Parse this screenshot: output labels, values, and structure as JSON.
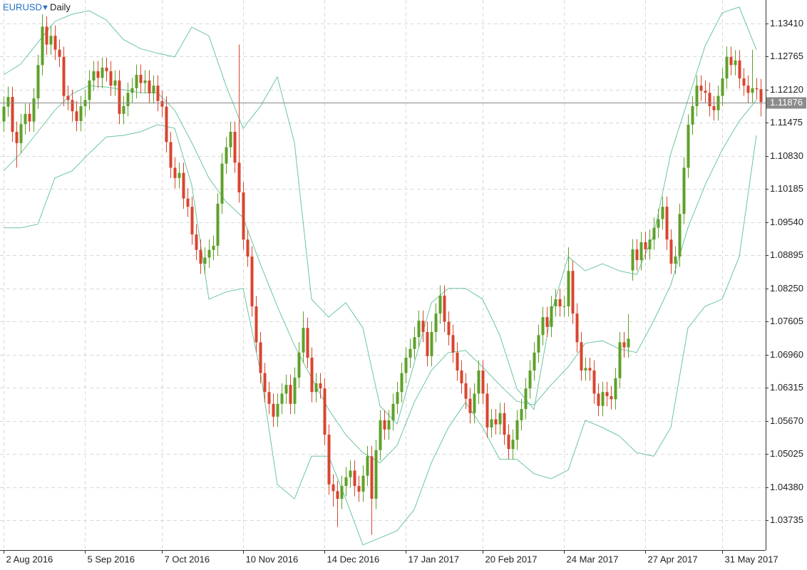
{
  "chart_data": {
    "type": "candlestick",
    "symbol": "EURUSD",
    "timeframe": "Daily",
    "up_color": "#5da12a",
    "down_color": "#d8452f",
    "band_color": "#6cc5a0",
    "grid": true,
    "xlim": [
      -0.83,
      178.17
    ],
    "ylim": [
      1.03152,
      1.13868
    ],
    "xticks": [
      {
        "value": 0,
        "label": "2 Aug 2016"
      },
      {
        "value": 19,
        "label": "5 Sep 2016"
      },
      {
        "value": 37,
        "label": "7 Oct 2016"
      },
      {
        "value": 56,
        "label": "10 Nov 2016"
      },
      {
        "value": 75,
        "label": "14 Dec 2016"
      },
      {
        "value": 94,
        "label": "17 Jan 2017"
      },
      {
        "value": 112,
        "label": "20 Feb 2017"
      },
      {
        "value": 131,
        "label": "24 Mar 2017"
      },
      {
        "value": 150,
        "label": "27 Apr 2017"
      },
      {
        "value": 168,
        "label": "31 May 2017"
      }
    ],
    "yticks": [
      {
        "value": 1.1341,
        "label": "1.13410"
      },
      1.12765,
      {
        "value": 1.1212,
        "label": "1.12120"
      },
      1.11475,
      {
        "value": 1.1083,
        "label": "1.10830"
      },
      1.10185,
      {
        "value": 1.0954,
        "label": "1.09540"
      },
      1.08895,
      {
        "value": 1.0825,
        "label": "1.08250"
      },
      1.07605,
      {
        "value": 1.0696,
        "label": "1.06960"
      },
      1.06315,
      {
        "value": 1.0567,
        "label": "1.05670"
      },
      1.05025,
      {
        "value": 1.0438,
        "label": "1.04380"
      },
      1.03735
    ],
    "current_price": 1.11876,
    "open": [
      1.115,
      1.1179,
      1.1198,
      1.113,
      1.1108,
      1.1145,
      1.1165,
      1.115,
      1.1195,
      1.126,
      1.1335,
      1.13,
      1.1317,
      1.129,
      1.1276,
      1.12,
      1.1192,
      1.117,
      1.1151,
      1.118,
      1.1192,
      1.123,
      1.1248,
      1.1235,
      1.1255,
      1.1248,
      1.122,
      1.123,
      1.1165,
      1.118,
      1.1206,
      1.1215,
      1.1241,
      1.1225,
      1.123,
      1.1205,
      1.122,
      1.119,
      1.1179,
      1.111,
      1.106,
      1.104,
      1.105,
      1.1,
      1.0984,
      1.093,
      1.09,
      1.0873,
      1.0885,
      1.09,
      1.0908,
      1.099,
      1.1068,
      1.11,
      1.113,
      1.107,
      1.1012,
      1.092,
      1.0887,
      1.079,
      1.072,
      1.066,
      1.0623,
      1.06,
      1.0575,
      1.06,
      1.062,
      1.0637,
      1.06,
      1.0651,
      1.07,
      1.0748,
      1.069,
      1.0623,
      1.064,
      1.063,
      1.054,
      1.0443,
      1.043,
      1.0415,
      1.044,
      1.0457,
      1.047,
      1.044,
      1.0429,
      1.046,
      1.0498,
      1.0415,
      1.051,
      1.0568,
      1.055,
      1.0568,
      1.06,
      1.0623,
      1.066,
      1.069,
      1.0707,
      1.073,
      1.0762,
      1.074,
      1.0693,
      1.074,
      1.0776,
      1.0811,
      1.076,
      1.0734,
      1.07,
      1.0665,
      1.064,
      1.061,
      1.0582,
      1.062,
      1.0665,
      1.062,
      1.0554,
      1.057,
      1.056,
      1.0582,
      1.054,
      1.0512,
      1.053,
      1.0568,
      1.059,
      1.063,
      1.0665,
      1.07,
      1.0734,
      1.0769,
      1.075,
      1.079,
      1.0804,
      1.079,
      1.079,
      1.0859,
      1.0776,
      1.072,
      1.0665,
      1.067,
      1.0665,
      1.062,
      1.0596,
      1.0623,
      1.0615,
      1.0609,
      1.065,
      1.072,
      1.071,
      1.086,
      1.0901,
      1.088,
      1.0915,
      1.0901,
      1.092,
      1.0943,
      1.096,
      1.0984,
      1.092,
      1.0873,
      1.0887,
      1.097,
      1.106,
      1.1144,
      1.118,
      1.122,
      1.121,
      1.1206,
      1.118,
      1.1172,
      1.12,
      1.1234,
      1.1276,
      1.126,
      1.1269,
      1.1234,
      1.122,
      1.1206,
      1.1215,
      1.1213
    ],
    "high": [
      1.1199,
      1.1218,
      1.1218,
      1.115,
      1.1165,
      1.1185,
      1.1185,
      1.1215,
      1.128,
      1.1359,
      1.1355,
      1.1337,
      1.1337,
      1.131,
      1.1296,
      1.122,
      1.1212,
      1.119,
      1.12,
      1.1212,
      1.125,
      1.1268,
      1.1268,
      1.1275,
      1.1275,
      1.1268,
      1.125,
      1.125,
      1.12,
      1.1226,
      1.1235,
      1.1261,
      1.1261,
      1.125,
      1.125,
      1.124,
      1.124,
      1.121,
      1.1199,
      1.113,
      1.108,
      1.107,
      1.107,
      1.102,
      1.1004,
      1.095,
      1.092,
      1.0905,
      1.092,
      1.0928,
      1.101,
      1.1088,
      1.112,
      1.115,
      1.115,
      1.13,
      1.1032,
      1.094,
      1.0907,
      1.081,
      1.074,
      1.068,
      1.0643,
      1.062,
      1.062,
      1.064,
      1.0657,
      1.0657,
      1.0671,
      1.072,
      1.078,
      1.0768,
      1.071,
      1.066,
      1.066,
      1.065,
      1.056,
      1.0463,
      1.045,
      1.046,
      1.0477,
      1.049,
      1.049,
      1.046,
      1.048,
      1.0518,
      1.0518,
      1.053,
      1.0588,
      1.0588,
      1.0588,
      1.062,
      1.0643,
      1.068,
      1.071,
      1.0727,
      1.075,
      1.0782,
      1.0782,
      1.076,
      1.076,
      1.0796,
      1.0831,
      1.0831,
      1.078,
      1.0754,
      1.072,
      1.0685,
      1.066,
      1.063,
      1.064,
      1.0685,
      1.0685,
      1.064,
      1.059,
      1.059,
      1.0602,
      1.0602,
      1.056,
      1.055,
      1.0588,
      1.061,
      1.065,
      1.0685,
      1.072,
      1.0754,
      1.0789,
      1.0789,
      1.081,
      1.0824,
      1.0824,
      1.081,
      1.0905,
      1.0879,
      1.0796,
      1.074,
      1.069,
      1.069,
      1.0685,
      1.064,
      1.0643,
      1.0643,
      1.0635,
      1.067,
      1.074,
      1.074,
      1.0775,
      1.0921,
      1.0921,
      1.0935,
      1.0935,
      1.094,
      1.0963,
      1.098,
      1.1004,
      1.1004,
      1.094,
      1.0907,
      1.099,
      1.108,
      1.1164,
      1.12,
      1.124,
      1.124,
      1.123,
      1.1226,
      1.12,
      1.122,
      1.1254,
      1.1296,
      1.1296,
      1.1289,
      1.1289,
      1.1254,
      1.124,
      1.129,
      1.1235,
      1.1233
    ],
    "low": [
      1.113,
      1.1159,
      1.111,
      1.106,
      1.1088,
      1.1125,
      1.113,
      1.113,
      1.1175,
      1.124,
      1.128,
      1.128,
      1.127,
      1.1256,
      1.118,
      1.1172,
      1.115,
      1.1131,
      1.1131,
      1.116,
      1.1172,
      1.121,
      1.1215,
      1.1215,
      1.1228,
      1.12,
      1.12,
      1.1145,
      1.1145,
      1.116,
      1.1186,
      1.1195,
      1.1205,
      1.1205,
      1.1185,
      1.1185,
      1.117,
      1.1159,
      1.109,
      1.104,
      1.102,
      1.102,
      1.098,
      1.0964,
      1.091,
      1.088,
      1.0853,
      1.0853,
      1.0865,
      1.088,
      1.0888,
      1.097,
      1.1048,
      1.108,
      1.105,
      1.0992,
      1.09,
      1.0867,
      1.077,
      1.07,
      1.064,
      1.0603,
      1.058,
      1.0555,
      1.0555,
      1.058,
      1.06,
      1.058,
      1.058,
      1.0631,
      1.068,
      1.067,
      1.0603,
      1.0603,
      1.061,
      1.052,
      1.0423,
      1.04,
      1.036,
      1.0395,
      1.042,
      1.0437,
      1.042,
      1.0409,
      1.0409,
      1.044,
      1.0345,
      1.0395,
      1.049,
      1.053,
      1.053,
      1.0548,
      1.058,
      1.0603,
      1.064,
      1.067,
      1.0687,
      1.071,
      1.072,
      1.0673,
      1.0673,
      1.072,
      1.0756,
      1.074,
      1.0714,
      1.068,
      1.0645,
      1.062,
      1.059,
      1.0562,
      1.0562,
      1.06,
      1.06,
      1.0534,
      1.0534,
      1.054,
      1.054,
      1.052,
      1.0492,
      1.0492,
      1.051,
      1.0548,
      1.057,
      1.061,
      1.0645,
      1.068,
      1.0714,
      1.073,
      1.073,
      1.077,
      1.077,
      1.077,
      1.077,
      1.0756,
      1.07,
      1.0645,
      1.0645,
      1.0645,
      1.06,
      1.0576,
      1.0576,
      1.0595,
      1.0589,
      1.0589,
      1.063,
      1.069,
      1.069,
      1.084,
      1.086,
      1.086,
      1.0881,
      1.0881,
      1.09,
      1.0923,
      1.094,
      1.09,
      1.0853,
      1.0853,
      1.0867,
      1.095,
      1.104,
      1.1124,
      1.116,
      1.119,
      1.1186,
      1.116,
      1.1152,
      1.1152,
      1.118,
      1.1214,
      1.124,
      1.124,
      1.1214,
      1.12,
      1.1186,
      1.1186,
      1.1193,
      1.116
    ],
    "close": [
      1.1179,
      1.1198,
      1.113,
      1.1108,
      1.1145,
      1.1165,
      1.115,
      1.1195,
      1.126,
      1.1335,
      1.13,
      1.1317,
      1.129,
      1.1276,
      1.12,
      1.1192,
      1.117,
      1.1151,
      1.118,
      1.1192,
      1.123,
      1.1248,
      1.1235,
      1.1255,
      1.1248,
      1.122,
      1.123,
      1.1165,
      1.118,
      1.1206,
      1.1215,
      1.1241,
      1.1225,
      1.123,
      1.1205,
      1.122,
      1.119,
      1.1179,
      1.111,
      1.106,
      1.104,
      1.105,
      1.1,
      1.0984,
      1.093,
      1.09,
      1.0873,
      1.0885,
      1.09,
      1.0908,
      1.099,
      1.1068,
      1.11,
      1.113,
      1.107,
      1.1012,
      1.092,
      1.0887,
      1.079,
      1.072,
      1.066,
      1.0623,
      1.06,
      1.0575,
      1.06,
      1.062,
      1.0637,
      1.06,
      1.0651,
      1.07,
      1.0748,
      1.069,
      1.0623,
      1.064,
      1.063,
      1.054,
      1.0443,
      1.043,
      1.0415,
      1.044,
      1.0457,
      1.047,
      1.044,
      1.0429,
      1.046,
      1.0498,
      1.0415,
      1.051,
      1.0568,
      1.055,
      1.0568,
      1.06,
      1.0623,
      1.066,
      1.069,
      1.0707,
      1.073,
      1.0762,
      1.074,
      1.0693,
      1.074,
      1.0776,
      1.0811,
      1.076,
      1.0734,
      1.07,
      1.0665,
      1.064,
      1.061,
      1.0582,
      1.062,
      1.0665,
      1.062,
      1.0554,
      1.057,
      1.056,
      1.0582,
      1.054,
      1.0512,
      1.053,
      1.0568,
      1.059,
      1.063,
      1.0665,
      1.07,
      1.0734,
      1.0769,
      1.075,
      1.079,
      1.0804,
      1.079,
      1.079,
      1.0859,
      1.0776,
      1.072,
      1.0665,
      1.067,
      1.0665,
      1.062,
      1.0596,
      1.0623,
      1.0615,
      1.0609,
      1.065,
      1.072,
      1.071,
      1.0727,
      1.0901,
      1.088,
      1.0915,
      1.0901,
      1.092,
      1.0943,
      1.096,
      1.0984,
      1.092,
      1.0873,
      1.0887,
      1.097,
      1.106,
      1.1144,
      1.118,
      1.122,
      1.121,
      1.1206,
      1.118,
      1.1172,
      1.12,
      1.1234,
      1.1276,
      1.126,
      1.1269,
      1.1234,
      1.122,
      1.1206,
      1.1215,
      1.1213,
      1.1188
    ],
    "band_x": [
      0,
      4,
      8,
      12,
      16,
      20,
      24,
      28,
      32,
      36,
      40,
      44,
      48,
      52,
      56,
      60,
      64,
      68,
      72,
      76,
      80,
      84,
      88,
      92,
      96,
      100,
      104,
      108,
      112,
      116,
      120,
      124,
      128,
      132,
      136,
      140,
      144,
      148,
      152,
      156,
      160,
      164,
      168,
      172,
      176
    ],
    "bands": [
      {
        "values": [
          1.1241,
          1.1262,
          1.1304,
          1.1345,
          1.1359,
          1.1366,
          1.1348,
          1.131,
          1.1292,
          1.1283,
          1.1276,
          1.1334,
          1.1317,
          1.122,
          1.1137,
          1.1179,
          1.1237,
          1.1109,
          1.0804,
          1.0769,
          1.0797,
          1.0748,
          1.0596,
          1.0561,
          1.0679,
          1.0797,
          1.0825,
          1.0825,
          1.0804,
          1.0734,
          1.063,
          1.0589,
          1.0776,
          1.0887,
          1.0859,
          1.0873,
          1.0859,
          1.0852,
          1.0929,
          1.1088,
          1.1192,
          1.1297,
          1.1362,
          1.1373,
          1.129
        ]
      },
      {
        "values": [
          1.1054,
          1.1088,
          1.113,
          1.1172,
          1.1204,
          1.122,
          1.1217,
          1.1212,
          1.1206,
          1.1206,
          1.1172,
          1.1109,
          1.104,
          1.0994,
          1.0963,
          1.0873,
          1.079,
          1.0714,
          1.0651,
          1.0589,
          1.054,
          1.0505,
          1.0485,
          1.0519,
          1.0603,
          1.0665,
          1.07,
          1.0704,
          1.0672,
          1.0637,
          1.0605,
          1.0598,
          1.0637,
          1.0672,
          1.0718,
          1.0723,
          1.0707,
          1.07,
          1.0762,
          1.0832,
          1.0943,
          1.1026,
          1.1095,
          1.1151,
          1.1192
        ]
      },
      {
        "values": [
          1.0943,
          1.0943,
          1.095,
          1.104,
          1.1054,
          1.1088,
          1.112,
          1.1123,
          1.113,
          1.1144,
          1.1137,
          1.1026,
          1.0804,
          1.0818,
          1.0825,
          1.0665,
          1.0443,
          1.0415,
          1.0498,
          1.0498,
          1.0415,
          1.0325,
          1.0339,
          1.0353,
          1.0394,
          1.0485,
          1.0554,
          1.0603,
          1.0554,
          1.0492,
          1.0492,
          1.0464,
          1.0454,
          1.0471,
          1.0568,
          1.0554,
          1.0537,
          1.0505,
          1.0498,
          1.0554,
          1.0748,
          1.079,
          1.0804,
          1.0887,
          1.1123
        ]
      }
    ]
  }
}
